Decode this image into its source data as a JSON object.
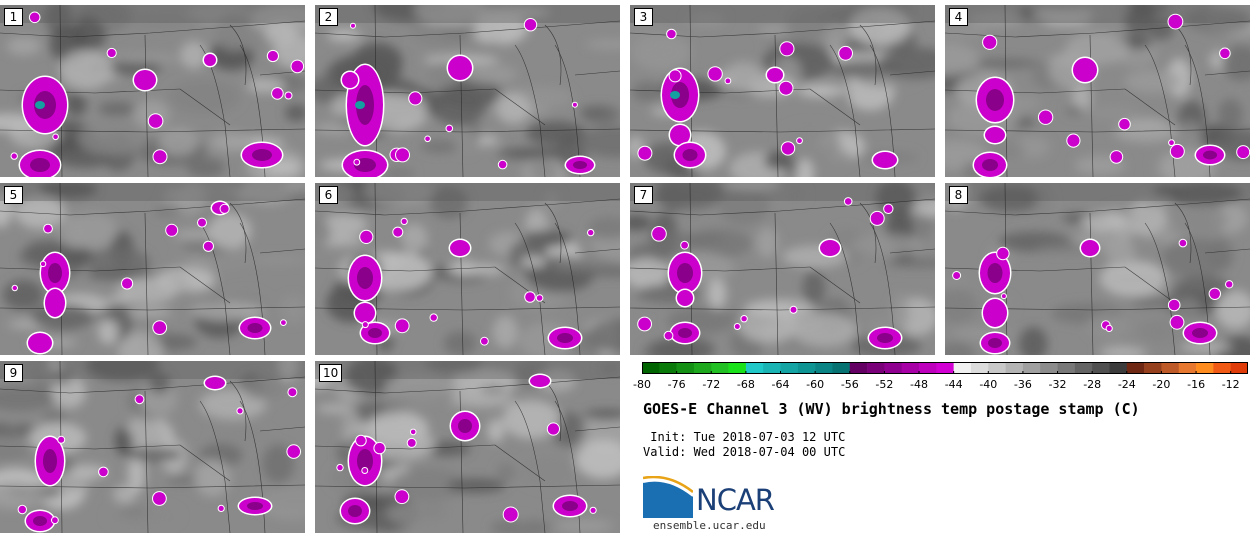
{
  "title": "GOES-E Channel 3 (WV) brightness temp postage stamp (C)",
  "init_label": " Init: Tue 2018-07-03 12 UTC",
  "valid_label": "Valid: Wed 2018-07-04 00 UTC",
  "logo": {
    "text": "NCAR",
    "url": "ensemble.ucar.edu",
    "color": "#1b3f77"
  },
  "panels": [
    {
      "id": "1",
      "label": "1"
    },
    {
      "id": "2",
      "label": "2"
    },
    {
      "id": "3",
      "label": "3"
    },
    {
      "id": "4",
      "label": "4"
    },
    {
      "id": "5",
      "label": "5"
    },
    {
      "id": "6",
      "label": "6"
    },
    {
      "id": "7",
      "label": "7"
    },
    {
      "id": "8",
      "label": "8"
    },
    {
      "id": "9",
      "label": "9"
    },
    {
      "id": "10",
      "label": "10"
    }
  ],
  "colorbar": {
    "min": -80,
    "max": -10,
    "ticks": [
      "-80",
      "-76",
      "-72",
      "-68",
      "-64",
      "-60",
      "-56",
      "-52",
      "-48",
      "-44",
      "-40",
      "-36",
      "-32",
      "-28",
      "-24",
      "-20",
      "-16",
      "-12"
    ],
    "tick_values": [
      -80,
      -76,
      -72,
      -68,
      -64,
      -60,
      -56,
      -52,
      -48,
      -44,
      -40,
      -36,
      -32,
      -28,
      -24,
      -20,
      -16,
      -12
    ],
    "bins": [
      {
        "from": -80,
        "to": -78,
        "color": "#006400"
      },
      {
        "from": -78,
        "to": -76,
        "color": "#0a7a0a"
      },
      {
        "from": -76,
        "to": -74,
        "color": "#149014"
      },
      {
        "from": -74,
        "to": -72,
        "color": "#1ea81e"
      },
      {
        "from": -72,
        "to": -70,
        "color": "#22c022"
      },
      {
        "from": -70,
        "to": -68,
        "color": "#1ae21a"
      },
      {
        "from": -68,
        "to": -66,
        "color": "#20c8c8"
      },
      {
        "from": -66,
        "to": -64,
        "color": "#1ab4b4"
      },
      {
        "from": -64,
        "to": -62,
        "color": "#14a4a4"
      },
      {
        "from": -62,
        "to": -60,
        "color": "#0f9494"
      },
      {
        "from": -60,
        "to": -58,
        "color": "#0a8484"
      },
      {
        "from": -58,
        "to": -56,
        "color": "#067272"
      },
      {
        "from": -56,
        "to": -54,
        "color": "#640064"
      },
      {
        "from": -54,
        "to": -52,
        "color": "#7a007a"
      },
      {
        "from": -52,
        "to": -50,
        "color": "#900090"
      },
      {
        "from": -50,
        "to": -48,
        "color": "#a600a6"
      },
      {
        "from": -48,
        "to": -46,
        "color": "#bc00bc"
      },
      {
        "from": -46,
        "to": -44,
        "color": "#d200d2"
      },
      {
        "from": -44,
        "to": -42,
        "color": "#f0f0f0"
      },
      {
        "from": -42,
        "to": -40,
        "color": "#dcdcdc"
      },
      {
        "from": -40,
        "to": -38,
        "color": "#c8c8c8"
      },
      {
        "from": -38,
        "to": -36,
        "color": "#b4b4b4"
      },
      {
        "from": -36,
        "to": -34,
        "color": "#a0a0a0"
      },
      {
        "from": -34,
        "to": -32,
        "color": "#8c8c8c"
      },
      {
        "from": -32,
        "to": -30,
        "color": "#787878"
      },
      {
        "from": -30,
        "to": -28,
        "color": "#646464"
      },
      {
        "from": -28,
        "to": -26,
        "color": "#505050"
      },
      {
        "from": -26,
        "to": -24,
        "color": "#3c3c3c"
      },
      {
        "from": -24,
        "to": -22,
        "color": "#6e2814"
      },
      {
        "from": -22,
        "to": -20,
        "color": "#96401e"
      },
      {
        "from": -20,
        "to": -18,
        "color": "#be5a28"
      },
      {
        "from": -18,
        "to": -16,
        "color": "#e67830"
      },
      {
        "from": -16,
        "to": -14,
        "color": "#ff8c1e"
      },
      {
        "from": -14,
        "to": -12,
        "color": "#f05a14"
      },
      {
        "from": -12,
        "to": -10,
        "color": "#e03c0a"
      }
    ]
  },
  "colors": {
    "storm": "#cc00cc",
    "storm_core": "#8a008a",
    "storm_deep": "#14a0a0",
    "outline": "#ffffff",
    "state_lines": "#222222"
  }
}
